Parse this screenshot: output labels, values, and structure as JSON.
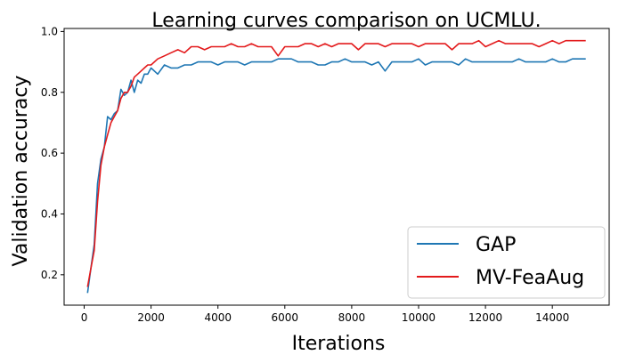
{
  "chart_data": {
    "type": "line",
    "title": "Learning curves comparison on UCMLU.",
    "xlabel": "Iterations",
    "ylabel": "Validation accuracy",
    "xlim": [
      -600,
      15700
    ],
    "ylim": [
      0.1,
      1.01
    ],
    "xticks": [
      0,
      2000,
      4000,
      6000,
      8000,
      10000,
      12000,
      14000
    ],
    "yticks": [
      0.2,
      0.4,
      0.6,
      0.8,
      1.0
    ],
    "xtick_labels": [
      "0",
      "2000",
      "4000",
      "6000",
      "8000",
      "10000",
      "12000",
      "14000"
    ],
    "ytick_labels": [
      "0.2",
      "0.4",
      "0.6",
      "0.8",
      "1.0"
    ],
    "grid": false,
    "legend_position": "lower-right",
    "series": [
      {
        "name": "GAP",
        "color": "#1f77b4",
        "x": [
          100,
          200,
          300,
          400,
          500,
          600,
          700,
          800,
          900,
          1000,
          1100,
          1200,
          1300,
          1400,
          1500,
          1600,
          1700,
          1800,
          1900,
          2000,
          2200,
          2400,
          2600,
          2800,
          3000,
          3200,
          3400,
          3600,
          3800,
          4000,
          4200,
          4400,
          4600,
          4800,
          5000,
          5200,
          5400,
          5600,
          5800,
          6000,
          6200,
          6400,
          6600,
          6800,
          7000,
          7200,
          7400,
          7600,
          7800,
          8000,
          8200,
          8400,
          8600,
          8800,
          9000,
          9200,
          9400,
          9600,
          9800,
          10000,
          10200,
          10400,
          10600,
          10800,
          11000,
          11200,
          11400,
          11600,
          11800,
          12000,
          12200,
          12400,
          12600,
          12800,
          13000,
          13200,
          13400,
          13600,
          13800,
          14000,
          14200,
          14400,
          14600,
          14800,
          15000
        ],
        "values": [
          0.14,
          0.22,
          0.3,
          0.5,
          0.58,
          0.62,
          0.72,
          0.71,
          0.73,
          0.74,
          0.81,
          0.79,
          0.8,
          0.84,
          0.8,
          0.84,
          0.83,
          0.86,
          0.86,
          0.88,
          0.86,
          0.89,
          0.88,
          0.88,
          0.89,
          0.89,
          0.9,
          0.9,
          0.9,
          0.89,
          0.9,
          0.9,
          0.9,
          0.89,
          0.9,
          0.9,
          0.9,
          0.9,
          0.91,
          0.91,
          0.91,
          0.9,
          0.9,
          0.9,
          0.89,
          0.89,
          0.9,
          0.9,
          0.91,
          0.9,
          0.9,
          0.9,
          0.89,
          0.9,
          0.87,
          0.9,
          0.9,
          0.9,
          0.9,
          0.91,
          0.89,
          0.9,
          0.9,
          0.9,
          0.9,
          0.89,
          0.91,
          0.9,
          0.9,
          0.9,
          0.9,
          0.9,
          0.9,
          0.9,
          0.91,
          0.9,
          0.9,
          0.9,
          0.9,
          0.91,
          0.9,
          0.9,
          0.91,
          0.91,
          0.91
        ]
      },
      {
        "name": "MV-FeaAug",
        "color": "#e31a1c",
        "x": [
          100,
          200,
          300,
          400,
          500,
          600,
          700,
          800,
          900,
          1000,
          1100,
          1200,
          1300,
          1400,
          1500,
          1600,
          1700,
          1800,
          1900,
          2000,
          2200,
          2400,
          2600,
          2800,
          3000,
          3200,
          3400,
          3600,
          3800,
          4000,
          4200,
          4400,
          4600,
          4800,
          5000,
          5200,
          5400,
          5600,
          5800,
          6000,
          6200,
          6400,
          6600,
          6800,
          7000,
          7200,
          7400,
          7600,
          7800,
          8000,
          8200,
          8400,
          8600,
          8800,
          9000,
          9200,
          9400,
          9600,
          9800,
          10000,
          10200,
          10400,
          10600,
          10800,
          11000,
          11200,
          11400,
          11600,
          11800,
          12000,
          12200,
          12400,
          12600,
          12800,
          13000,
          13200,
          13400,
          13600,
          13800,
          14000,
          14200,
          14400,
          14600,
          14800,
          15000
        ],
        "values": [
          0.16,
          0.22,
          0.28,
          0.44,
          0.56,
          0.62,
          0.66,
          0.7,
          0.72,
          0.74,
          0.78,
          0.8,
          0.8,
          0.82,
          0.85,
          0.86,
          0.87,
          0.88,
          0.89,
          0.89,
          0.91,
          0.92,
          0.93,
          0.94,
          0.93,
          0.95,
          0.95,
          0.94,
          0.95,
          0.95,
          0.95,
          0.96,
          0.95,
          0.95,
          0.96,
          0.95,
          0.95,
          0.95,
          0.92,
          0.95,
          0.95,
          0.95,
          0.96,
          0.96,
          0.95,
          0.96,
          0.95,
          0.96,
          0.96,
          0.96,
          0.94,
          0.96,
          0.96,
          0.96,
          0.95,
          0.96,
          0.96,
          0.96,
          0.96,
          0.95,
          0.96,
          0.96,
          0.96,
          0.96,
          0.94,
          0.96,
          0.96,
          0.96,
          0.97,
          0.95,
          0.96,
          0.97,
          0.96,
          0.96,
          0.96,
          0.96,
          0.96,
          0.95,
          0.96,
          0.97,
          0.96,
          0.97,
          0.97,
          0.97,
          0.97
        ]
      }
    ]
  }
}
